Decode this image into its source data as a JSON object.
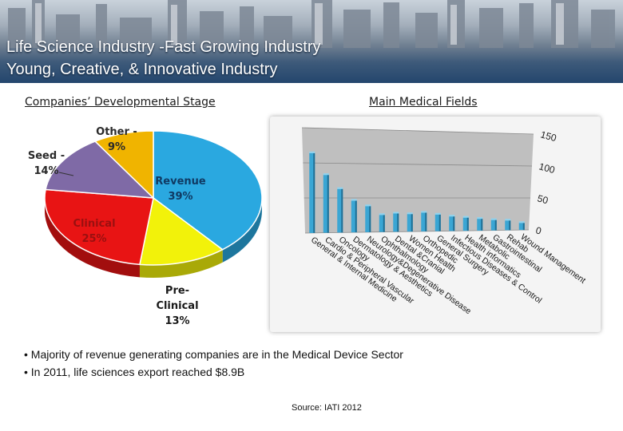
{
  "header": {
    "line1": "Life Science Industry -Fast Growing Industry",
    "line2": "Young, Creative, & Innovative Industry"
  },
  "chart_data": [
    {
      "type": "pie",
      "title": "Companies’ Developmental Stage",
      "slices": [
        {
          "label": "Revenue",
          "pct_label": "39%",
          "value": 39,
          "color": "#2aa8e0"
        },
        {
          "label": "Pre-Clinical",
          "pct_label": "13%",
          "value": 13,
          "color": "#f2f20a"
        },
        {
          "label": "Clinical",
          "pct_label": "25%",
          "value": 25,
          "color": "#e81414"
        },
        {
          "label": "Seed -",
          "pct_label": "14%",
          "value": 14,
          "color": "#7f6aa6"
        },
        {
          "label": "Other -",
          "pct_label": "9%",
          "value": 9,
          "color": "#f0b400"
        }
      ]
    },
    {
      "type": "bar",
      "title": "Main Medical Fields",
      "categories": [
        "General & Internal Medicine",
        "Cardio & Peripheral Vascular",
        "Oncology",
        "Dermatology & Aesthetics",
        "Neurology&Degenerative Disease",
        "Ophthalmology",
        "Dental &Cranial",
        "Women Health",
        "Orthopedic",
        "General Surgery",
        "Infectious Diseases & Control",
        "Health informatics",
        "Metabolic",
        "Gastrointestinal",
        "Rehab",
        "Wound Management"
      ],
      "values": [
        114,
        83,
        63,
        46,
        38,
        25,
        27,
        26,
        28,
        25,
        22,
        20,
        18,
        16,
        15,
        11
      ],
      "ylim": [
        0,
        150
      ],
      "yticks": [
        "0",
        "50",
        "100",
        "150"
      ],
      "colors": {
        "bar": "#3aa6d4",
        "plot_bg": "#bfbfbf"
      }
    }
  ],
  "bullets": [
    "• Majority of revenue generating companies are in the Medical Device Sector",
    "• In 2011, life sciences export reached $8.9B"
  ],
  "source": "Source: IATI 2012"
}
